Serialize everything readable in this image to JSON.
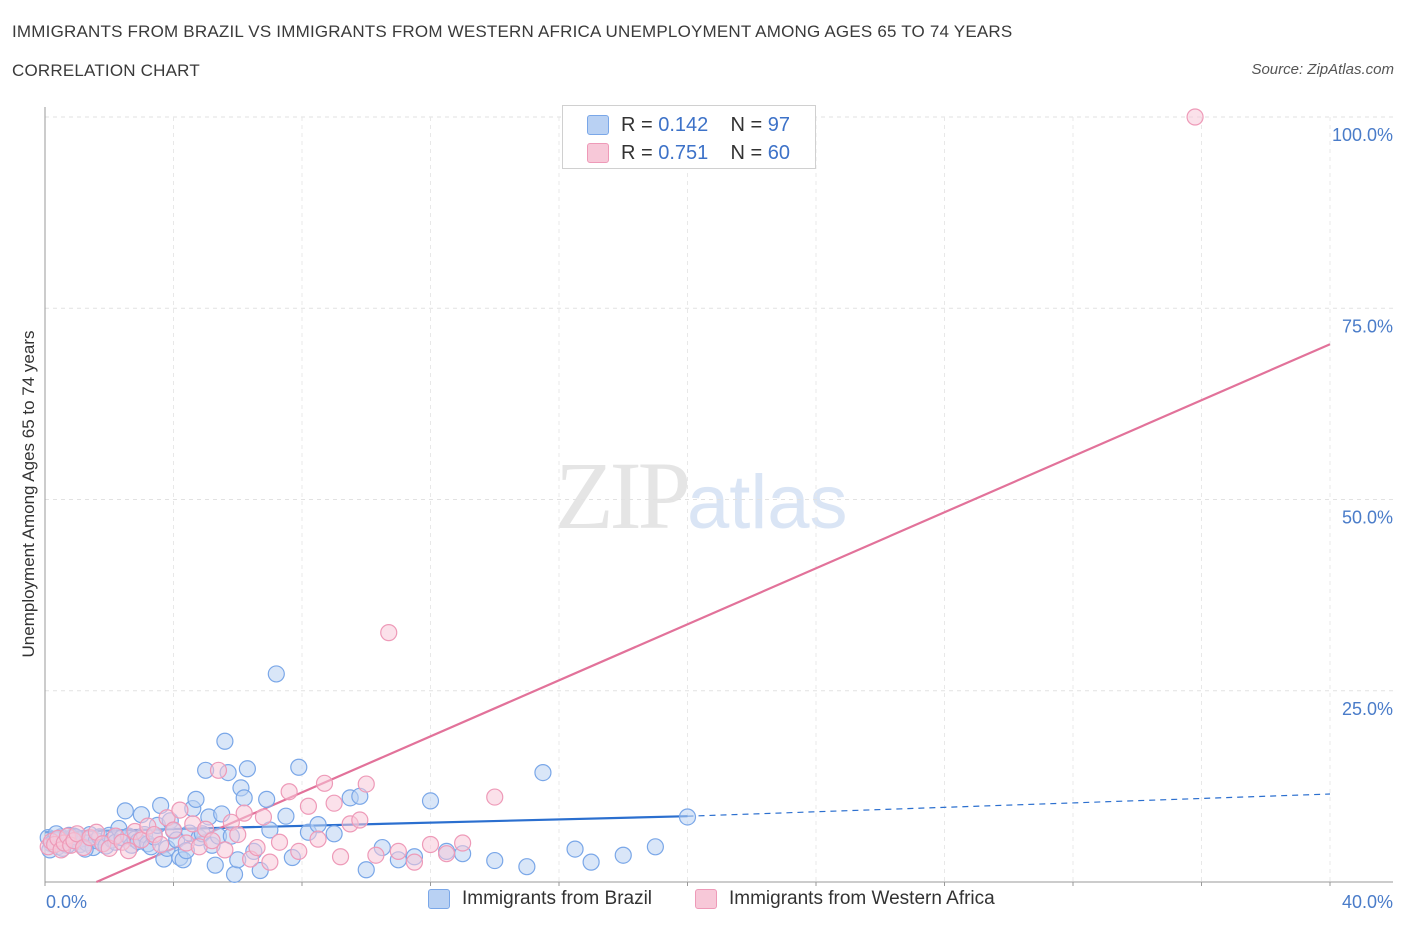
{
  "chart_data": {
    "type": "scatter",
    "title": "IMMIGRANTS FROM BRAZIL VS IMMIGRANTS FROM WESTERN AFRICA UNEMPLOYMENT AMONG AGES 65 TO 74 YEARS",
    "subtitle": "CORRELATION CHART",
    "source": "Source: ZipAtlas.com",
    "xlabel": "",
    "ylabel": "Unemployment Among Ages 65 to 74 years",
    "xlim": [
      0,
      40
    ],
    "ylim": [
      0,
      100
    ],
    "x_tick_labels": [
      "0.0%",
      "40.0%"
    ],
    "y_ticks": [
      {
        "value": 25,
        "label": "25.0%"
      },
      {
        "value": 50,
        "label": "50.0%"
      },
      {
        "value": 75,
        "label": "75.0%"
      },
      {
        "value": 100,
        "label": "100.0%"
      }
    ],
    "grid": true,
    "legend_stats": [
      {
        "r_label": "R =",
        "r": "0.142",
        "n_label": "N =",
        "n": "97"
      },
      {
        "r_label": "R =",
        "r": "0.751",
        "n_label": "N =",
        "n": "60"
      }
    ],
    "series": [
      {
        "name": "Immigrants from Brazil",
        "color": "#7aa7e8",
        "fill": "#b9d1f3",
        "line_color": "#2b6fcf",
        "trend": {
          "x0": 0,
          "y0": 6.5,
          "x1": 20,
          "y1": 8.6,
          "dash_to_x": 40,
          "dash_to_y": 11.5
        },
        "points": [
          [
            0.1,
            5.8
          ],
          [
            0.2,
            5.0
          ],
          [
            0.3,
            5.5
          ],
          [
            0.4,
            4.6
          ],
          [
            0.5,
            5.9
          ],
          [
            0.6,
            5.2
          ],
          [
            0.7,
            4.8
          ],
          [
            0.8,
            5.6
          ],
          [
            0.9,
            6.0
          ],
          [
            1.0,
            5.3
          ],
          [
            1.1,
            4.9
          ],
          [
            1.2,
            5.7
          ],
          [
            1.3,
            5.1
          ],
          [
            1.4,
            6.2
          ],
          [
            1.5,
            4.5
          ],
          [
            1.6,
            5.4
          ],
          [
            1.7,
            5.9
          ],
          [
            1.8,
            5.0
          ],
          [
            1.9,
            4.7
          ],
          [
            2.0,
            6.1
          ],
          [
            2.1,
            5.5
          ],
          [
            2.2,
            5.2
          ],
          [
            2.3,
            7.0
          ],
          [
            2.4,
            5.8
          ],
          [
            2.5,
            9.3
          ],
          [
            2.6,
            6.0
          ],
          [
            2.7,
            4.8
          ],
          [
            2.8,
            5.6
          ],
          [
            2.9,
            5.3
          ],
          [
            3.0,
            8.8
          ],
          [
            3.1,
            6.2
          ],
          [
            3.2,
            5.0
          ],
          [
            3.3,
            4.6
          ],
          [
            3.4,
            5.9
          ],
          [
            3.5,
            7.4
          ],
          [
            3.6,
            10.0
          ],
          [
            3.7,
            3.0
          ],
          [
            3.8,
            4.4
          ],
          [
            3.9,
            8.0
          ],
          [
            4.0,
            6.7
          ],
          [
            4.1,
            5.5
          ],
          [
            4.2,
            3.2
          ],
          [
            4.3,
            2.9
          ],
          [
            4.4,
            4.1
          ],
          [
            4.5,
            6.4
          ],
          [
            4.6,
            9.6
          ],
          [
            4.7,
            10.8
          ],
          [
            4.8,
            5.8
          ],
          [
            4.9,
            6.3
          ],
          [
            5.0,
            14.6
          ],
          [
            5.1,
            8.5
          ],
          [
            5.2,
            4.8
          ],
          [
            5.3,
            2.2
          ],
          [
            5.4,
            6.0
          ],
          [
            5.5,
            8.9
          ],
          [
            5.6,
            18.4
          ],
          [
            5.7,
            14.3
          ],
          [
            5.8,
            6.0
          ],
          [
            5.9,
            1.0
          ],
          [
            6.0,
            2.9
          ],
          [
            6.1,
            12.3
          ],
          [
            6.2,
            11.0
          ],
          [
            6.3,
            14.8
          ],
          [
            6.5,
            4.0
          ],
          [
            6.7,
            1.5
          ],
          [
            6.9,
            10.8
          ],
          [
            7.0,
            6.8
          ],
          [
            7.2,
            27.2
          ],
          [
            7.5,
            8.6
          ],
          [
            7.7,
            3.2
          ],
          [
            7.9,
            15.0
          ],
          [
            8.2,
            6.5
          ],
          [
            8.5,
            7.5
          ],
          [
            9.0,
            6.3
          ],
          [
            9.5,
            11.0
          ],
          [
            9.8,
            11.2
          ],
          [
            10.0,
            1.6
          ],
          [
            10.5,
            4.5
          ],
          [
            11.0,
            2.9
          ],
          [
            11.5,
            3.3
          ],
          [
            12.0,
            10.6
          ],
          [
            12.5,
            4.0
          ],
          [
            13.0,
            3.7
          ],
          [
            14.0,
            2.8
          ],
          [
            15.0,
            2.0
          ],
          [
            15.5,
            14.3
          ],
          [
            16.5,
            4.3
          ],
          [
            17.0,
            2.6
          ],
          [
            18.0,
            3.5
          ],
          [
            19.0,
            4.6
          ],
          [
            20.0,
            8.5
          ],
          [
            0.15,
            4.2
          ],
          [
            0.35,
            6.3
          ],
          [
            0.55,
            4.4
          ],
          [
            0.75,
            6.1
          ],
          [
            0.95,
            5.9
          ],
          [
            1.25,
            4.3
          ]
        ]
      },
      {
        "name": "Immigrants from Western Africa",
        "color": "#ee9ab8",
        "fill": "#f7c8d8",
        "line_color": "#e2729a",
        "trend": {
          "x0": 1.6,
          "y0": 0,
          "x1": 40,
          "y1": 70.3
        },
        "points": [
          [
            0.1,
            4.6
          ],
          [
            0.2,
            5.3
          ],
          [
            0.3,
            4.9
          ],
          [
            0.4,
            5.7
          ],
          [
            0.5,
            4.2
          ],
          [
            0.6,
            5.1
          ],
          [
            0.7,
            6.0
          ],
          [
            0.8,
            4.8
          ],
          [
            0.9,
            5.4
          ],
          [
            1.0,
            6.3
          ],
          [
            1.2,
            4.5
          ],
          [
            1.4,
            5.8
          ],
          [
            1.6,
            6.5
          ],
          [
            1.8,
            5.0
          ],
          [
            2.0,
            4.4
          ],
          [
            2.2,
            6.0
          ],
          [
            2.4,
            5.2
          ],
          [
            2.6,
            4.1
          ],
          [
            2.8,
            6.6
          ],
          [
            3.0,
            5.5
          ],
          [
            3.2,
            7.3
          ],
          [
            3.4,
            6.2
          ],
          [
            3.6,
            4.9
          ],
          [
            3.8,
            8.4
          ],
          [
            4.0,
            6.8
          ],
          [
            4.2,
            9.4
          ],
          [
            4.4,
            5.1
          ],
          [
            4.6,
            7.6
          ],
          [
            4.8,
            4.6
          ],
          [
            5.0,
            6.9
          ],
          [
            5.2,
            5.4
          ],
          [
            5.4,
            14.6
          ],
          [
            5.6,
            4.2
          ],
          [
            5.8,
            7.8
          ],
          [
            6.0,
            6.2
          ],
          [
            6.2,
            9.0
          ],
          [
            6.4,
            3.0
          ],
          [
            6.6,
            4.5
          ],
          [
            6.8,
            8.5
          ],
          [
            7.0,
            2.6
          ],
          [
            7.3,
            5.2
          ],
          [
            7.6,
            11.8
          ],
          [
            7.9,
            4.0
          ],
          [
            8.2,
            9.9
          ],
          [
            8.5,
            5.6
          ],
          [
            8.7,
            12.9
          ],
          [
            9.0,
            10.3
          ],
          [
            9.2,
            3.3
          ],
          [
            9.5,
            7.6
          ],
          [
            9.8,
            8.1
          ],
          [
            10.0,
            12.8
          ],
          [
            10.3,
            3.5
          ],
          [
            10.7,
            32.6
          ],
          [
            11.0,
            4.0
          ],
          [
            11.5,
            2.6
          ],
          [
            12.0,
            4.9
          ],
          [
            12.5,
            3.7
          ],
          [
            13.0,
            5.1
          ],
          [
            14.0,
            11.1
          ],
          [
            35.8,
            100.0
          ]
        ]
      }
    ]
  }
}
